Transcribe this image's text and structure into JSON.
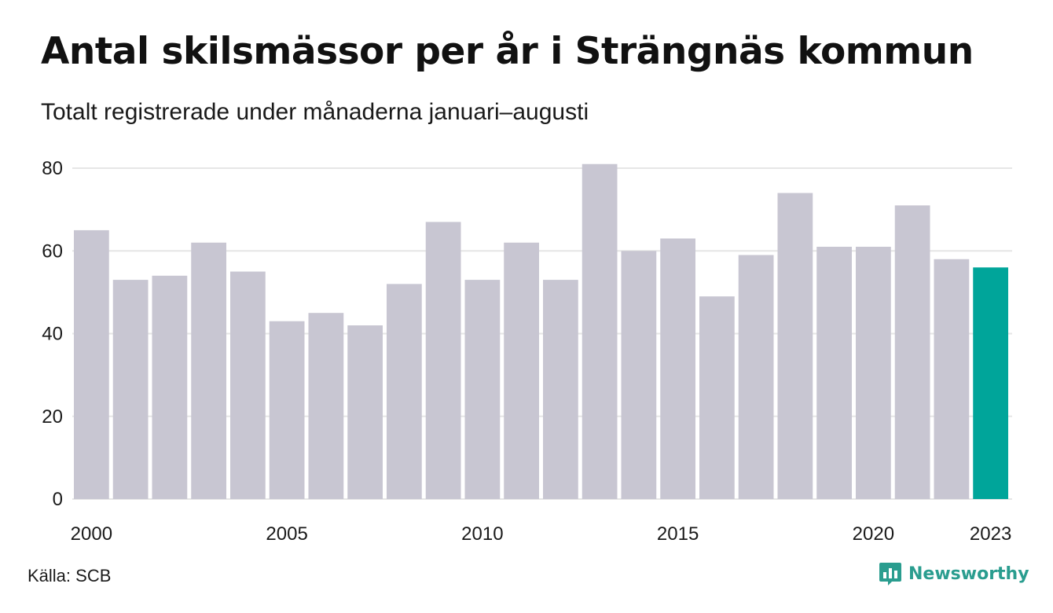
{
  "title": "Antal skilsmässor per år i Strängnäs kommun",
  "subtitle": "Totalt registrerade under månaderna januari–augusti",
  "source": "Källa: SCB",
  "brand": {
    "name": "Newsworthy",
    "icon": "bar-chart-bubble-icon"
  },
  "colors": {
    "bar": "#c8c6d2",
    "highlight": "#00a59a",
    "grid": "#e6e6e6",
    "brand": "#2a9d8f"
  },
  "chart_data": {
    "type": "bar",
    "categories": [
      "2000",
      "2001",
      "2002",
      "2003",
      "2004",
      "2005",
      "2006",
      "2007",
      "2008",
      "2009",
      "2010",
      "2011",
      "2012",
      "2013",
      "2014",
      "2015",
      "2016",
      "2017",
      "2018",
      "2019",
      "2020",
      "2021",
      "2022",
      "2023"
    ],
    "values": [
      65,
      53,
      54,
      62,
      55,
      43,
      45,
      42,
      52,
      67,
      53,
      62,
      53,
      81,
      60,
      63,
      49,
      59,
      74,
      61,
      61,
      71,
      58,
      56
    ],
    "highlight": "2023",
    "x_tick_labels": [
      "2000",
      "2005",
      "2010",
      "2015",
      "2020",
      "2023"
    ],
    "y_ticks": [
      0,
      20,
      40,
      60,
      80
    ],
    "ylim": [
      0,
      81
    ],
    "grid": true,
    "xlabel": "",
    "ylabel": ""
  }
}
